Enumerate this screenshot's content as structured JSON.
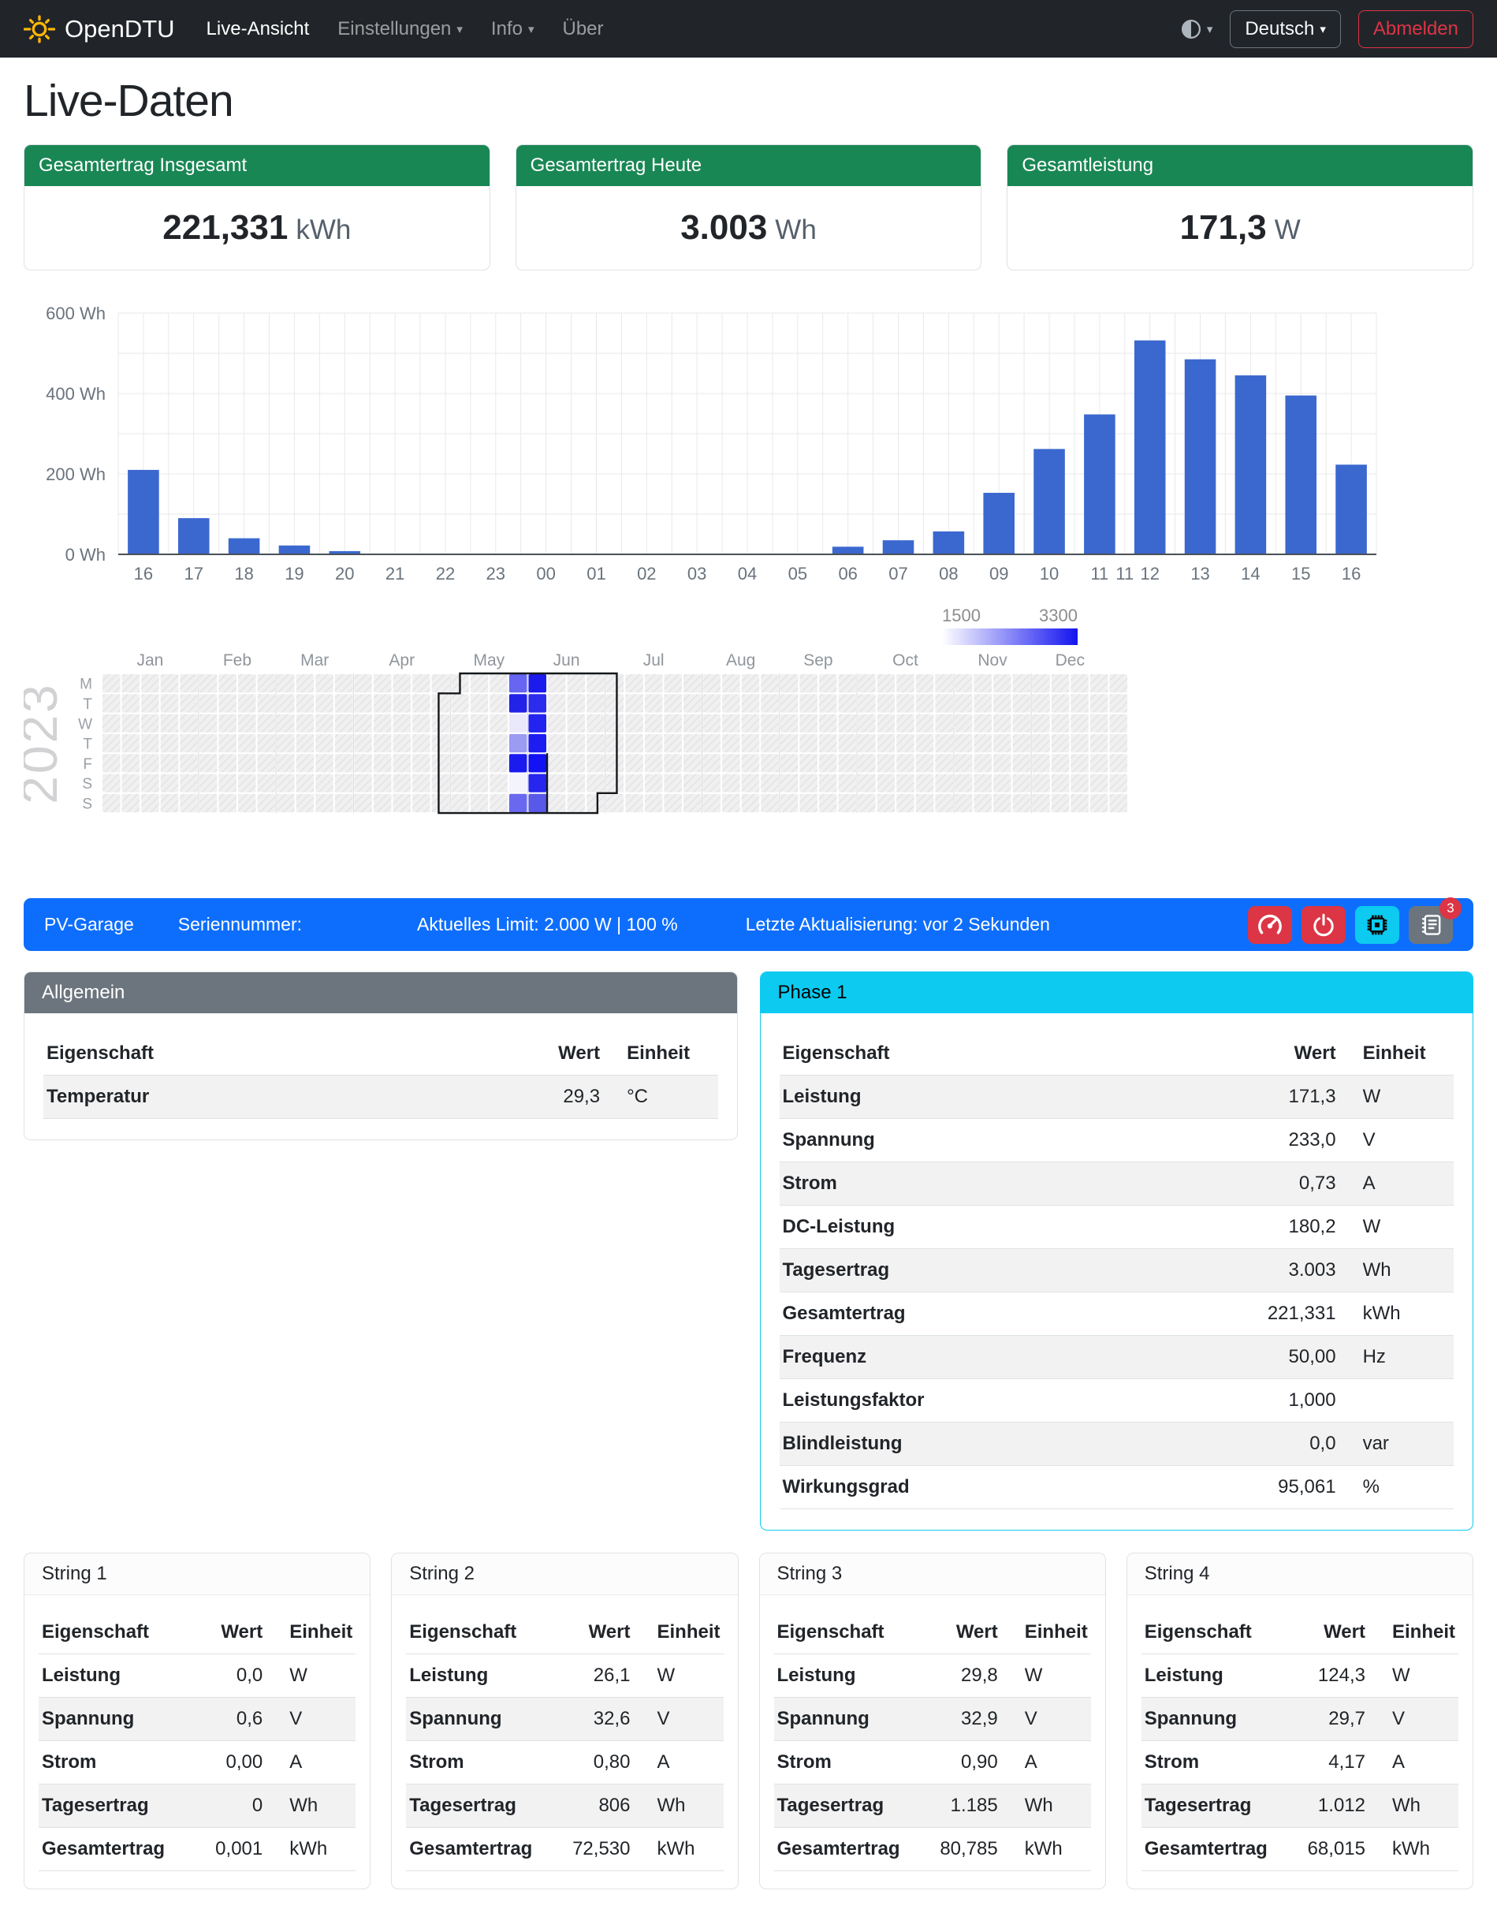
{
  "navbar": {
    "brand": "OpenDTU",
    "items": [
      {
        "label": "Live-Ansicht",
        "active": true
      },
      {
        "label": "Einstellungen",
        "dropdown": true
      },
      {
        "label": "Info",
        "dropdown": true
      },
      {
        "label": "Über",
        "dropdown": false
      }
    ],
    "language": "Deutsch",
    "logout_label": "Abmelden"
  },
  "page": {
    "title": "Live-Daten"
  },
  "summary_cards": [
    {
      "title": "Gesamtertrag Insgesamt",
      "value": "221,331",
      "unit": "kWh"
    },
    {
      "title": "Gesamtertrag Heute",
      "value": "3.003",
      "unit": "Wh"
    },
    {
      "title": "Gesamtleistung",
      "value": "171,3",
      "unit": "W"
    }
  ],
  "chart_data": [
    {
      "type": "bar",
      "title": "Hourly yield",
      "xlabel": "",
      "ylabel": "",
      "unit": "Wh",
      "categories": [
        "16",
        "17",
        "18",
        "19",
        "20",
        "21",
        "22",
        "23",
        "00",
        "01",
        "02",
        "03",
        "04",
        "05",
        "06",
        "07",
        "08",
        "09",
        "10",
        "11",
        "11",
        "12",
        "13",
        "14",
        "15",
        "16"
      ],
      "x_units": [
        0,
        1,
        2,
        3,
        4,
        5,
        6,
        7,
        8,
        9,
        10,
        11,
        12,
        13,
        14,
        15,
        16,
        17,
        18,
        19,
        19.5,
        20,
        21,
        22,
        23,
        24
      ],
      "values": [
        210,
        90,
        40,
        22,
        8,
        0,
        0,
        0,
        0,
        0,
        0,
        0,
        0,
        0,
        19,
        35,
        57,
        153,
        262,
        348,
        0,
        532,
        485,
        445,
        395,
        223
      ],
      "ylim": [
        0,
        600
      ],
      "y_minor_step": 100,
      "y_label_step": 200,
      "ytick_labels": [
        "0 Wh",
        "200 Wh",
        "400 Wh",
        "600 Wh"
      ],
      "grid": true,
      "bar_color": "#3b68cf"
    },
    {
      "type": "heatmap",
      "title": "Yearly yield heatmap",
      "year": "2023",
      "legend": {
        "min": "1500",
        "max": "3300"
      },
      "months": [
        "Jan",
        "Feb",
        "Mar",
        "Apr",
        "May",
        "Jun",
        "Jul",
        "Aug",
        "Sep",
        "Oct",
        "Nov",
        "Dec"
      ],
      "month_center_cols": [
        2.5,
        7,
        11,
        15.5,
        20,
        24,
        28.5,
        33,
        37,
        41.5,
        46,
        50
      ],
      "month_start_cols": [
        5,
        9,
        13,
        18,
        22,
        26,
        31,
        35,
        39,
        44,
        48
      ],
      "weekdays": [
        "M",
        "T",
        "W",
        "T",
        "F",
        "S",
        "S"
      ],
      "weeks": 53,
      "cells": [
        {
          "col": 21,
          "row": 0,
          "color": "#6666f2"
        },
        {
          "col": 21,
          "row": 1,
          "color": "#2222e9"
        },
        {
          "col": 21,
          "row": 2,
          "color": "#e9e9fb"
        },
        {
          "col": 21,
          "row": 3,
          "color": "#9b9bf1"
        },
        {
          "col": 21,
          "row": 4,
          "color": "#1b1bf0"
        },
        {
          "col": 21,
          "row": 5,
          "color": "#f4f4fd"
        },
        {
          "col": 21,
          "row": 6,
          "color": "#6969f0"
        },
        {
          "col": 22,
          "row": 0,
          "color": "#1b1bee"
        },
        {
          "col": 22,
          "row": 1,
          "color": "#2c2cee"
        },
        {
          "col": 22,
          "row": 2,
          "color": "#2424f0"
        },
        {
          "col": 22,
          "row": 3,
          "color": "#1d1df2"
        },
        {
          "col": 22,
          "row": 4,
          "color": "#1212f4"
        },
        {
          "col": 22,
          "row": 5,
          "color": "#2626ee"
        },
        {
          "col": 22,
          "row": 6,
          "color": "#5858e9"
        }
      ],
      "outline": {
        "left_col": 17.4,
        "top_start_col": 18.5,
        "right_col": 26.6,
        "divider_col": 23.0,
        "divider_from_row": 4
      }
    }
  ],
  "inverter": {
    "name": "PV-Garage",
    "serial_label": "Seriennummer:",
    "serial": "",
    "limit": "Aktuelles Limit: 2.000 W | 100 %",
    "updated": "Letzte Aktualisierung: vor 2 Sekunden",
    "buttons": [
      {
        "name": "limit-settings",
        "style": "danger",
        "icon": "speedometer-icon"
      },
      {
        "name": "power-toggle",
        "style": "danger",
        "icon": "power-icon"
      },
      {
        "name": "device-info",
        "style": "info",
        "icon": "cpu-icon"
      },
      {
        "name": "event-log",
        "style": "secondary",
        "icon": "journal-icon",
        "badge": "3"
      }
    ]
  },
  "table_headers": {
    "property": "Eigenschaft",
    "value": "Wert",
    "unit": "Einheit"
  },
  "sections": {
    "allgemein": {
      "title": "Allgemein",
      "stripe_first": true,
      "rows": [
        {
          "label": "Temperatur",
          "value": "29,3",
          "unit": "°C"
        }
      ]
    },
    "phase1": {
      "title": "Phase 1",
      "stripe_first": true,
      "rows": [
        {
          "label": "Leistung",
          "value": "171,3",
          "unit": "W"
        },
        {
          "label": "Spannung",
          "value": "233,0",
          "unit": "V"
        },
        {
          "label": "Strom",
          "value": "0,73",
          "unit": "A"
        },
        {
          "label": "DC-Leistung",
          "value": "180,2",
          "unit": "W"
        },
        {
          "label": "Tagesertrag",
          "value": "3.003",
          "unit": "Wh"
        },
        {
          "label": "Gesamtertrag",
          "value": "221,331",
          "unit": "kWh"
        },
        {
          "label": "Frequenz",
          "value": "50,00",
          "unit": "Hz"
        },
        {
          "label": "Leistungsfaktor",
          "value": "1,000",
          "unit": ""
        },
        {
          "label": "Blindleistung",
          "value": "0,0",
          "unit": "var"
        },
        {
          "label": "Wirkungsgrad",
          "value": "95,061",
          "unit": "%"
        }
      ]
    }
  },
  "strings": [
    {
      "title": "String 1",
      "stripe_first": false,
      "rows": [
        {
          "label": "Leistung",
          "value": "0,0",
          "unit": "W"
        },
        {
          "label": "Spannung",
          "value": "0,6",
          "unit": "V"
        },
        {
          "label": "Strom",
          "value": "0,00",
          "unit": "A"
        },
        {
          "label": "Tagesertrag",
          "value": "0",
          "unit": "Wh"
        },
        {
          "label": "Gesamtertrag",
          "value": "0,001",
          "unit": "kWh"
        }
      ]
    },
    {
      "title": "String 2",
      "stripe_first": false,
      "rows": [
        {
          "label": "Leistung",
          "value": "26,1",
          "unit": "W"
        },
        {
          "label": "Spannung",
          "value": "32,6",
          "unit": "V"
        },
        {
          "label": "Strom",
          "value": "0,80",
          "unit": "A"
        },
        {
          "label": "Tagesertrag",
          "value": "806",
          "unit": "Wh"
        },
        {
          "label": "Gesamtertrag",
          "value": "72,530",
          "unit": "kWh"
        }
      ]
    },
    {
      "title": "String 3",
      "stripe_first": false,
      "rows": [
        {
          "label": "Leistung",
          "value": "29,8",
          "unit": "W"
        },
        {
          "label": "Spannung",
          "value": "32,9",
          "unit": "V"
        },
        {
          "label": "Strom",
          "value": "0,90",
          "unit": "A"
        },
        {
          "label": "Tagesertrag",
          "value": "1.185",
          "unit": "Wh"
        },
        {
          "label": "Gesamtertrag",
          "value": "80,785",
          "unit": "kWh"
        }
      ]
    },
    {
      "title": "String 4",
      "stripe_first": false,
      "rows": [
        {
          "label": "Leistung",
          "value": "124,3",
          "unit": "W"
        },
        {
          "label": "Spannung",
          "value": "29,7",
          "unit": "V"
        },
        {
          "label": "Strom",
          "value": "4,17",
          "unit": "A"
        },
        {
          "label": "Tagesertrag",
          "value": "1.012",
          "unit": "Wh"
        },
        {
          "label": "Gesamtertrag",
          "value": "68,015",
          "unit": "kWh"
        }
      ]
    }
  ],
  "colors": {
    "success": "#198754",
    "danger": "#dc3545",
    "info": "#0dcaf0",
    "secondary": "#6c757d",
    "primary": "#0d6efd",
    "bar": "#3b68cf",
    "heat_max": "#1414f0",
    "navbar_bg": "#212529"
  }
}
